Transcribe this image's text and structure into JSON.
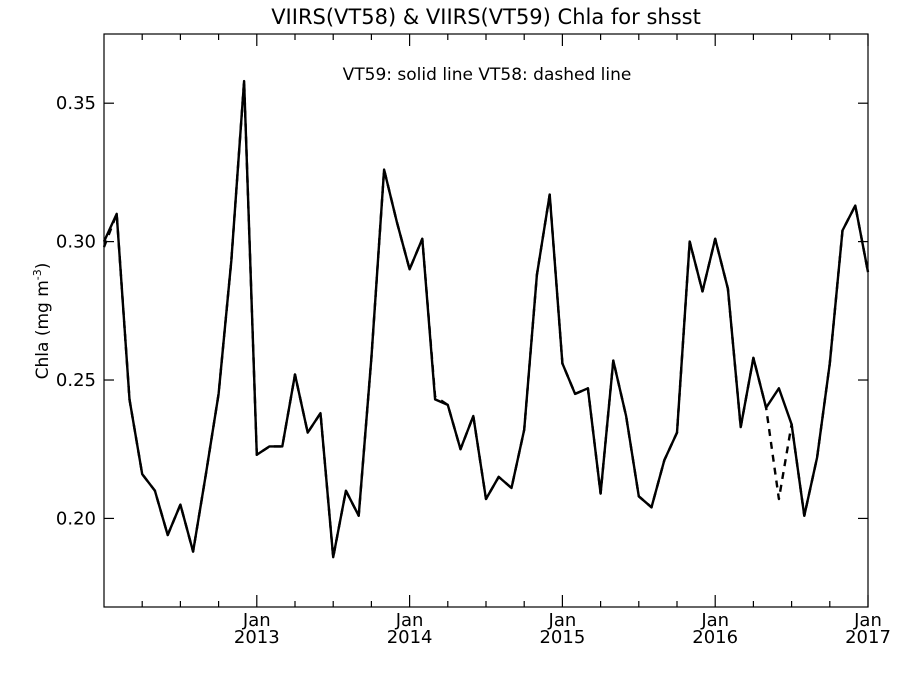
{
  "chart_data": {
    "type": "line",
    "title": "VIIRS(VT58) & VIIRS(VT59)  Chla for shsst",
    "annotation": "VT59: solid line   VT58: dashed line",
    "ylabel_main": "Chla (mg m",
    "ylabel_exp": "-3",
    "ylabel_close": ")",
    "xlim": [
      "2012-01",
      "2017-01"
    ],
    "ylim": [
      0.168,
      0.375
    ],
    "yticks": [
      {
        "value": 0.2,
        "label": "0.20"
      },
      {
        "value": 0.25,
        "label": "0.25"
      },
      {
        "value": 0.3,
        "label": "0.30"
      },
      {
        "value": 0.35,
        "label": "0.35"
      }
    ],
    "xticks": [
      {
        "date": "2013-01",
        "month": "Jan",
        "year": "2013"
      },
      {
        "date": "2014-01",
        "month": "Jan",
        "year": "2014"
      },
      {
        "date": "2015-01",
        "month": "Jan",
        "year": "2015"
      },
      {
        "date": "2016-01",
        "month": "Jan",
        "year": "2016"
      },
      {
        "date": "2017-01",
        "month": "Jan",
        "year": "2017"
      }
    ],
    "series": [
      {
        "style": "solid",
        "points": [
          [
            "2012-01",
            0.3
          ],
          [
            "2012-02",
            0.31
          ],
          [
            "2012-03",
            0.243
          ],
          [
            "2012-04",
            0.216
          ],
          [
            "2012-05",
            0.21
          ],
          [
            "2012-06",
            0.194
          ],
          [
            "2012-07",
            0.205
          ],
          [
            "2012-08",
            0.188
          ],
          [
            "2012-09",
            0.216
          ],
          [
            "2012-10",
            0.245
          ],
          [
            "2012-11",
            0.293
          ],
          [
            "2012-12",
            0.358
          ],
          [
            "2013-01",
            0.223
          ],
          [
            "2013-02",
            0.226
          ],
          [
            "2013-03",
            0.226
          ],
          [
            "2013-04",
            0.252
          ],
          [
            "2013-05",
            0.231
          ],
          [
            "2013-06",
            0.238
          ],
          [
            "2013-07",
            0.186
          ],
          [
            "2013-08",
            0.21
          ],
          [
            "2013-09",
            0.201
          ],
          [
            "2013-10",
            0.258
          ],
          [
            "2013-11",
            0.326
          ],
          [
            "2013-12",
            0.307
          ],
          [
            "2014-01",
            0.29
          ],
          [
            "2014-02",
            0.301
          ],
          [
            "2014-03",
            0.243
          ],
          [
            "2014-04",
            0.241
          ],
          [
            "2014-05",
            0.225
          ],
          [
            "2014-06",
            0.237
          ],
          [
            "2014-07",
            0.207
          ],
          [
            "2014-08",
            0.215
          ],
          [
            "2014-09",
            0.211
          ],
          [
            "2014-10",
            0.232
          ],
          [
            "2014-11",
            0.288
          ],
          [
            "2014-12",
            0.317
          ],
          [
            "2015-01",
            0.256
          ],
          [
            "2015-02",
            0.245
          ],
          [
            "2015-03",
            0.247
          ],
          [
            "2015-04",
            0.209
          ],
          [
            "2015-05",
            0.257
          ],
          [
            "2015-06",
            0.237
          ],
          [
            "2015-07",
            0.208
          ],
          [
            "2015-08",
            0.204
          ],
          [
            "2015-09",
            0.221
          ],
          [
            "2015-10",
            0.231
          ],
          [
            "2015-11",
            0.3
          ],
          [
            "2015-12",
            0.282
          ],
          [
            "2016-01",
            0.301
          ],
          [
            "2016-02",
            0.283
          ],
          [
            "2016-03",
            0.233
          ],
          [
            "2016-04",
            0.258
          ],
          [
            "2016-05",
            0.24
          ],
          [
            "2016-06",
            0.247
          ],
          [
            "2016-07",
            0.234
          ],
          [
            "2016-08",
            0.201
          ],
          [
            "2016-09",
            0.222
          ],
          [
            "2016-10",
            0.256
          ],
          [
            "2016-11",
            0.304
          ],
          [
            "2016-12",
            0.313
          ],
          [
            "2017-01",
            0.289
          ]
        ]
      },
      {
        "style": "dashed",
        "points": [
          [
            "2012-01",
            0.298
          ],
          [
            "2012-02",
            0.31
          ],
          [
            "2012-03",
            0.243
          ],
          [
            "2012-04",
            0.216
          ],
          [
            "2012-05",
            0.21
          ],
          [
            "2012-06",
            0.194
          ],
          [
            "2012-07",
            0.205
          ],
          [
            "2012-08",
            0.188
          ],
          [
            "2012-09",
            0.216
          ],
          [
            "2012-10",
            0.245
          ],
          [
            "2012-11",
            0.293
          ],
          [
            "2012-12",
            0.358
          ],
          [
            "2013-01",
            0.223
          ],
          [
            "2013-02",
            0.226
          ],
          [
            "2013-03",
            0.226
          ],
          [
            "2013-04",
            0.252
          ],
          [
            "2013-05",
            0.231
          ],
          [
            "2013-06",
            0.238
          ],
          [
            "2013-07",
            0.186
          ],
          [
            "2013-08",
            0.21
          ],
          [
            "2013-09",
            0.201
          ],
          [
            "2013-10",
            0.258
          ],
          [
            "2013-11",
            0.326
          ],
          [
            "2013-12",
            0.307
          ],
          [
            "2014-01",
            0.29
          ],
          [
            "2014-02",
            0.301
          ],
          [
            "2014-03",
            0.244
          ],
          [
            "2014-04",
            0.241
          ],
          [
            "2014-05",
            0.225
          ],
          [
            "2014-06",
            0.237
          ],
          [
            "2014-07",
            0.207
          ],
          [
            "2014-08",
            0.215
          ],
          [
            "2014-09",
            0.211
          ],
          [
            "2014-10",
            0.232
          ],
          [
            "2014-11",
            0.288
          ],
          [
            "2014-12",
            0.317
          ],
          [
            "2015-01",
            0.256
          ],
          [
            "2015-02",
            0.245
          ],
          [
            "2015-03",
            0.247
          ],
          [
            "2015-04",
            0.209
          ],
          [
            "2015-05",
            0.257
          ],
          [
            "2015-06",
            0.237
          ],
          [
            "2015-07",
            0.208
          ],
          [
            "2015-08",
            0.204
          ],
          [
            "2015-09",
            0.221
          ],
          [
            "2015-10",
            0.231
          ],
          [
            "2015-11",
            0.3
          ],
          [
            "2015-12",
            0.282
          ],
          [
            "2016-01",
            0.301
          ],
          [
            "2016-02",
            0.283
          ],
          [
            "2016-03",
            0.233
          ],
          [
            "2016-04",
            0.258
          ],
          [
            "2016-05",
            0.24
          ],
          [
            "2016-06",
            0.207
          ],
          [
            "2016-07",
            0.234
          ],
          [
            "2016-08",
            0.201
          ],
          [
            "2016-09",
            0.222
          ],
          [
            "2016-10",
            0.256
          ],
          [
            "2016-11",
            0.304
          ],
          [
            "2016-12",
            0.313
          ],
          [
            "2017-01",
            0.289
          ]
        ]
      }
    ]
  }
}
